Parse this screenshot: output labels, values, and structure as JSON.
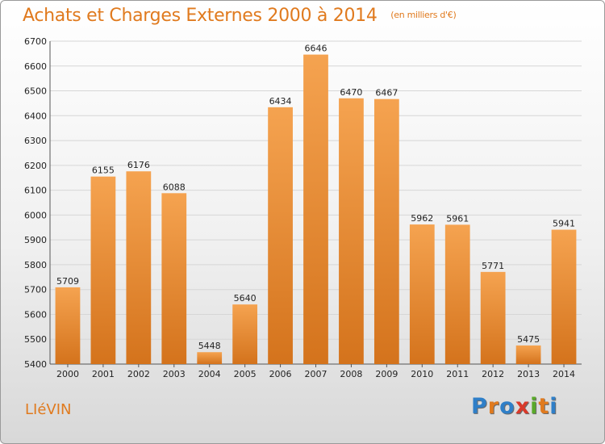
{
  "header": {
    "title": "Achats et Charges Externes 2000 à 2014",
    "subtitle": "(en milliers d'€)"
  },
  "footer": {
    "city": "LIéVIN",
    "logo_letters": [
      "P",
      "r",
      "o",
      "x",
      "i",
      "t",
      "i"
    ],
    "logo_colors": [
      "#2f7fc8",
      "#e07a1e",
      "#2f7fc8",
      "#d93a2b",
      "#59a92a",
      "#e07a1e",
      "#2f7fc8"
    ]
  },
  "colors": {
    "bar_top": "#f5a350",
    "bar_bottom": "#d4731c",
    "accent": "#e07a1e",
    "grid": "#d6d6d6"
  },
  "chart_data": {
    "type": "bar",
    "title": "Achats et Charges Externes 2000 à 2014",
    "subtitle": "(en milliers d'€)",
    "categories": [
      "2000",
      "2001",
      "2002",
      "2003",
      "2004",
      "2005",
      "2006",
      "2007",
      "2008",
      "2009",
      "2010",
      "2011",
      "2012",
      "2013",
      "2014"
    ],
    "values": [
      5709,
      6155,
      6176,
      6088,
      5448,
      5640,
      6434,
      6646,
      6470,
      6467,
      5962,
      5961,
      5771,
      5475,
      5941
    ],
    "yticks": [
      5400,
      5500,
      5600,
      5700,
      5800,
      5900,
      6000,
      6100,
      6200,
      6300,
      6400,
      6500,
      6600,
      6700
    ],
    "ylim": [
      5400,
      6700
    ],
    "grid": true,
    "legend": "none"
  }
}
